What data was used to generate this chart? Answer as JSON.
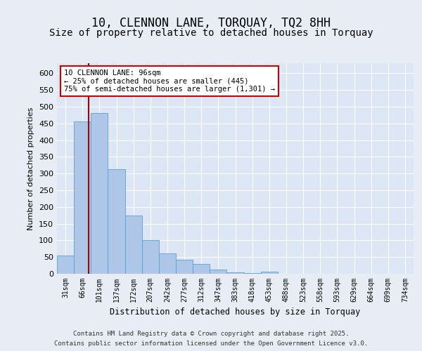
{
  "title": "10, CLENNON LANE, TORQUAY, TQ2 8HH",
  "subtitle": "Size of property relative to detached houses in Torquay",
  "xlabel": "Distribution of detached houses by size in Torquay",
  "ylabel": "Number of detached properties",
  "categories": [
    "31sqm",
    "66sqm",
    "101sqm",
    "137sqm",
    "172sqm",
    "207sqm",
    "242sqm",
    "277sqm",
    "312sqm",
    "347sqm",
    "383sqm",
    "418sqm",
    "453sqm",
    "488sqm",
    "523sqm",
    "558sqm",
    "593sqm",
    "629sqm",
    "664sqm",
    "699sqm",
    "734sqm"
  ],
  "bar_color": "#aec6e8",
  "bar_edge_color": "#5a9fd4",
  "vline_color": "#aa0000",
  "annotation_text": "10 CLENNON LANE: 96sqm\n← 25% of detached houses are smaller (445)\n75% of semi-detached houses are larger (1,301) →",
  "annotation_box_color": "#ffffff",
  "annotation_box_edge": "#cc0000",
  "ylim": [
    0,
    630
  ],
  "yticks": [
    0,
    50,
    100,
    150,
    200,
    250,
    300,
    350,
    400,
    450,
    500,
    550,
    600
  ],
  "background_color": "#dce6f5",
  "fig_background_color": "#e8edf5",
  "footer_line1": "Contains HM Land Registry data © Crown copyright and database right 2025.",
  "footer_line2": "Contains public sector information licensed under the Open Government Licence v3.0.",
  "title_fontsize": 12,
  "subtitle_fontsize": 10,
  "all_bar_heights": [
    55,
    455,
    480,
    312,
    175,
    100,
    60,
    42,
    30,
    12,
    5,
    3,
    7,
    0,
    0,
    0,
    0,
    0,
    0,
    0,
    0
  ]
}
